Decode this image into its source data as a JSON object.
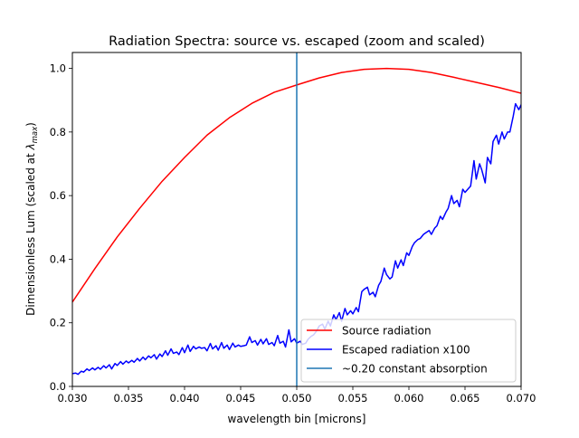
{
  "chart_data": {
    "type": "line",
    "title": "Radiation Spectra: source vs. escaped (zoom and scaled)",
    "xlabel": "wavelength bin [microns]",
    "ylabel_prefix": "Dimensionless Lum (scaled at ",
    "ylabel_symbol": "λ",
    "ylabel_subscript": "max",
    "ylabel_suffix": ")",
    "xlim": [
      0.03,
      0.07
    ],
    "ylim": [
      0.0,
      1.05
    ],
    "xticks": [
      "0.030",
      "0.035",
      "0.040",
      "0.045",
      "0.050",
      "0.055",
      "0.060",
      "0.065",
      "0.070"
    ],
    "xtick_values": [
      0.03,
      0.035,
      0.04,
      0.045,
      0.05,
      0.055,
      0.06,
      0.065,
      0.07
    ],
    "yticks": [
      "0.0",
      "0.2",
      "0.4",
      "0.6",
      "0.8",
      "1.0"
    ],
    "ytick_values": [
      0.0,
      0.2,
      0.4,
      0.6,
      0.8,
      1.0
    ],
    "grid": false,
    "legend_placement": "lower-right",
    "series": [
      {
        "name": "Source radiation",
        "color": "#ff0000",
        "x": [
          0.03,
          0.032,
          0.034,
          0.036,
          0.038,
          0.04,
          0.042,
          0.044,
          0.046,
          0.048,
          0.05,
          0.052,
          0.054,
          0.056,
          0.058,
          0.06,
          0.062,
          0.064,
          0.066,
          0.068,
          0.07
        ],
        "y": [
          0.265,
          0.37,
          0.47,
          0.56,
          0.645,
          0.72,
          0.79,
          0.845,
          0.89,
          0.925,
          0.948,
          0.97,
          0.987,
          0.997,
          1.0,
          0.997,
          0.987,
          0.972,
          0.956,
          0.94,
          0.922
        ]
      },
      {
        "name": "Escaped radiation x100",
        "color": "#0000ff",
        "x": [
          0.03,
          0.0303,
          0.0305,
          0.0308,
          0.031,
          0.0313,
          0.0315,
          0.0318,
          0.032,
          0.0323,
          0.0325,
          0.0328,
          0.033,
          0.0333,
          0.0335,
          0.0338,
          0.034,
          0.0343,
          0.0345,
          0.0348,
          0.035,
          0.0353,
          0.0355,
          0.0358,
          0.036,
          0.0363,
          0.0365,
          0.0368,
          0.037,
          0.0373,
          0.0375,
          0.0378,
          0.038,
          0.0383,
          0.0385,
          0.0388,
          0.039,
          0.0393,
          0.0395,
          0.0398,
          0.04,
          0.0403,
          0.0405,
          0.0408,
          0.041,
          0.0413,
          0.0415,
          0.0418,
          0.042,
          0.0423,
          0.0425,
          0.0428,
          0.043,
          0.0433,
          0.0435,
          0.0438,
          0.044,
          0.0443,
          0.0445,
          0.0448,
          0.045,
          0.0453,
          0.0455,
          0.0458,
          0.046,
          0.0463,
          0.0465,
          0.0468,
          0.047,
          0.0473,
          0.0475,
          0.0478,
          0.048,
          0.0483,
          0.0485,
          0.0488,
          0.049,
          0.0493,
          0.0495,
          0.0498,
          0.05,
          0.0503,
          0.0505,
          0.0508,
          0.051,
          0.0513,
          0.0515,
          0.0518,
          0.052,
          0.0523,
          0.0525,
          0.0528,
          0.053,
          0.0533,
          0.0535,
          0.0538,
          0.054,
          0.0543,
          0.0545,
          0.0548,
          0.055,
          0.0553,
          0.0555,
          0.0558,
          0.056,
          0.0563,
          0.0565,
          0.0568,
          0.057,
          0.0573,
          0.0575,
          0.0578,
          0.058,
          0.0583,
          0.0585,
          0.0588,
          0.059,
          0.0593,
          0.0595,
          0.0598,
          0.06,
          0.0603,
          0.0605,
          0.0608,
          0.061,
          0.0613,
          0.0615,
          0.0618,
          0.062,
          0.0623,
          0.0625,
          0.0628,
          0.063,
          0.0633,
          0.0635,
          0.0638,
          0.064,
          0.0643,
          0.0645,
          0.0648,
          0.065,
          0.0653,
          0.0655,
          0.0658,
          0.066,
          0.0663,
          0.0665,
          0.0668,
          0.067,
          0.0673,
          0.0675,
          0.0678,
          0.068,
          0.0683,
          0.0685,
          0.0688,
          0.069,
          0.0693,
          0.0695,
          0.0698,
          0.07
        ],
        "y": [
          0.04,
          0.042,
          0.038,
          0.048,
          0.045,
          0.055,
          0.05,
          0.058,
          0.052,
          0.06,
          0.054,
          0.065,
          0.058,
          0.068,
          0.055,
          0.072,
          0.066,
          0.078,
          0.07,
          0.08,
          0.074,
          0.082,
          0.076,
          0.088,
          0.08,
          0.092,
          0.084,
          0.096,
          0.09,
          0.1,
          0.086,
          0.102,
          0.094,
          0.112,
          0.098,
          0.118,
          0.104,
          0.108,
          0.1,
          0.122,
          0.106,
          0.13,
          0.11,
          0.126,
          0.118,
          0.124,
          0.12,
          0.122,
          0.112,
          0.135,
          0.118,
          0.128,
          0.114,
          0.138,
          0.12,
          0.13,
          0.116,
          0.136,
          0.124,
          0.13,
          0.126,
          0.128,
          0.13,
          0.156,
          0.138,
          0.144,
          0.13,
          0.148,
          0.134,
          0.15,
          0.132,
          0.138,
          0.128,
          0.16,
          0.136,
          0.142,
          0.124,
          0.178,
          0.14,
          0.15,
          0.136,
          0.142,
          0.132,
          0.136,
          0.148,
          0.158,
          0.162,
          0.176,
          0.19,
          0.196,
          0.18,
          0.205,
          0.19,
          0.225,
          0.21,
          0.232,
          0.205,
          0.245,
          0.225,
          0.238,
          0.228,
          0.248,
          0.235,
          0.298,
          0.305,
          0.312,
          0.288,
          0.296,
          0.282,
          0.318,
          0.33,
          0.372,
          0.352,
          0.338,
          0.344,
          0.395,
          0.372,
          0.398,
          0.38,
          0.42,
          0.412,
          0.44,
          0.452,
          0.462,
          0.465,
          0.478,
          0.483,
          0.49,
          0.478,
          0.498,
          0.505,
          0.535,
          0.525,
          0.548,
          0.56,
          0.6,
          0.575,
          0.585,
          0.565,
          0.62,
          0.61,
          0.622,
          0.63,
          0.71,
          0.652,
          0.7,
          0.68,
          0.64,
          0.72,
          0.7,
          0.77,
          0.79,
          0.762,
          0.8,
          0.778,
          0.8,
          0.8,
          0.85,
          0.889,
          0.87,
          0.886
        ]
      },
      {
        "name": "~0.20 constant absorption",
        "color": "#1f77b4",
        "vline_x": 0.05
      }
    ]
  }
}
